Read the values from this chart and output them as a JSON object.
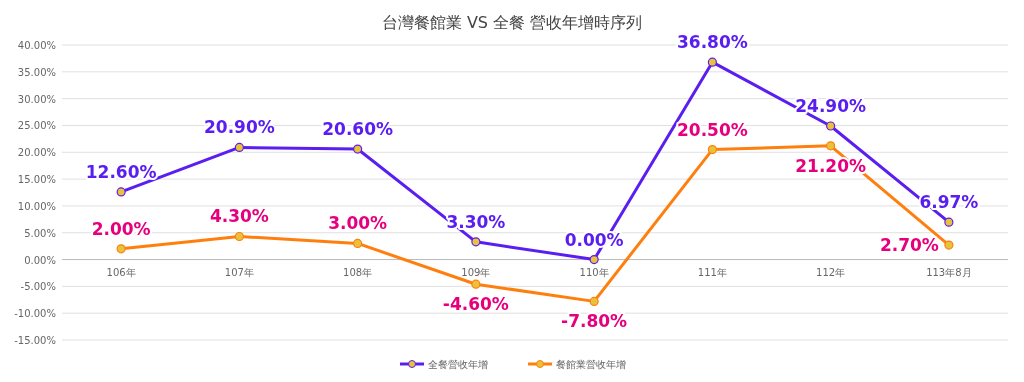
{
  "chart_data": {
    "type": "line",
    "title": "台灣餐館業 VS 全餐 營收年增時序列",
    "categories": [
      "106年",
      "107年",
      "108年",
      "109年",
      "110年",
      "111年",
      "112年",
      "113年8月"
    ],
    "series": [
      {
        "name": "全餐營收年增",
        "color": "#5a1ef0",
        "values": [
          12.6,
          20.9,
          20.6,
          3.3,
          0.0,
          36.8,
          24.9,
          6.97
        ],
        "value_labels": [
          "12.60%",
          "20.90%",
          "20.60%",
          "3.30%",
          "0.00%",
          "36.80%",
          "24.90%",
          "6.97%"
        ]
      },
      {
        "name": "餐館業營收年增",
        "color": "#ff7f0e",
        "values": [
          2.0,
          4.3,
          3.0,
          -4.6,
          -7.8,
          20.5,
          21.2,
          2.7
        ],
        "value_labels": [
          "2.00%",
          "4.30%",
          "3.00%",
          "-4.60%",
          "-7.80%",
          "20.50%",
          "21.20%",
          "2.70%"
        ]
      }
    ],
    "ylim": [
      -15,
      40
    ],
    "yticks": [
      {
        "value": -15,
        "label": "-15.00%"
      },
      {
        "value": -10,
        "label": "-10.00%"
      },
      {
        "value": -5,
        "label": "-5.00%"
      },
      {
        "value": 0,
        "label": "0.00%"
      },
      {
        "value": 5,
        "label": "5.00%"
      },
      {
        "value": 10,
        "label": "10.00%"
      },
      {
        "value": 15,
        "label": "15.00%"
      },
      {
        "value": 20,
        "label": "20.00%"
      },
      {
        "value": 25,
        "label": "25.00%"
      },
      {
        "value": 30,
        "label": "30.00%"
      },
      {
        "value": 35,
        "label": "35.00%"
      },
      {
        "value": 40,
        "label": "40.00%"
      }
    ],
    "grid": "y",
    "legend": "bottom",
    "marker": "circle",
    "line_style": "solid"
  }
}
